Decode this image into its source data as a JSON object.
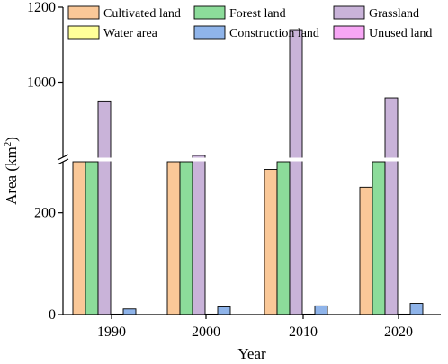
{
  "chart_data": {
    "type": "bar",
    "title": "",
    "xlabel": "Year",
    "ylabel": "Area (km²)",
    "ylabel_base": "Area (km",
    "ylabel_sup": "2",
    "ylabel_close": ")",
    "categories": [
      "1990",
      "2000",
      "2010",
      "2020"
    ],
    "series": [
      {
        "name": "Cultivated land",
        "color": "#fac898",
        "values": [
          380,
          380,
          285,
          250
        ]
      },
      {
        "name": "Forest land",
        "color": "#8cdc9a",
        "values": [
          380,
          380,
          380,
          380
        ]
      },
      {
        "name": "Grassland",
        "color": "#c9b3d9",
        "values": [
          950,
          805,
          1140,
          958
        ]
      },
      {
        "name": "Water area",
        "color": "#ffff99",
        "values": [
          1,
          1,
          1,
          1
        ]
      },
      {
        "name": "Construction land",
        "color": "#8fb4ea",
        "values": [
          11,
          15,
          17,
          22
        ]
      },
      {
        "name": "Unused land",
        "color": "#f7a6f5",
        "values": [
          0,
          0,
          0,
          0
        ]
      }
    ],
    "axis_break": {
      "lower_range": [
        0,
        300
      ],
      "upper_range": [
        800,
        1200
      ]
    },
    "y_ticks_lower": [
      "0",
      "200"
    ],
    "y_ticks_upper": [
      "1000",
      "1200"
    ],
    "grid": false,
    "legend_position": "top"
  }
}
